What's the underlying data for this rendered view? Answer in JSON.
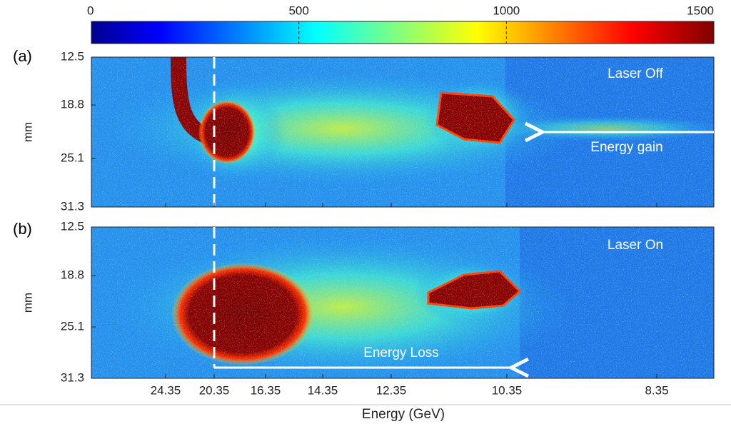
{
  "colorbar": {
    "ticks": [
      0,
      500,
      1000,
      1500
    ]
  },
  "panels": [
    {
      "label": "(a)",
      "y_label": "mm",
      "y_ticks": [
        "12.5",
        "18.8",
        "25.1",
        "31.3"
      ],
      "annotation": "Laser Off",
      "arrow_label": "Energy gain"
    },
    {
      "label": "(b)",
      "y_label": "mm",
      "y_ticks": [
        "12.5",
        "18.8",
        "25.1",
        "31.3"
      ],
      "annotation": "Laser On",
      "arrow_label": "Energy Loss"
    }
  ],
  "x_ticks": [
    "24.35",
    "20.35",
    "16.35",
    "14.35",
    "12.35",
    "10.35",
    "8.35"
  ],
  "x_label": "Energy (GeV)"
}
